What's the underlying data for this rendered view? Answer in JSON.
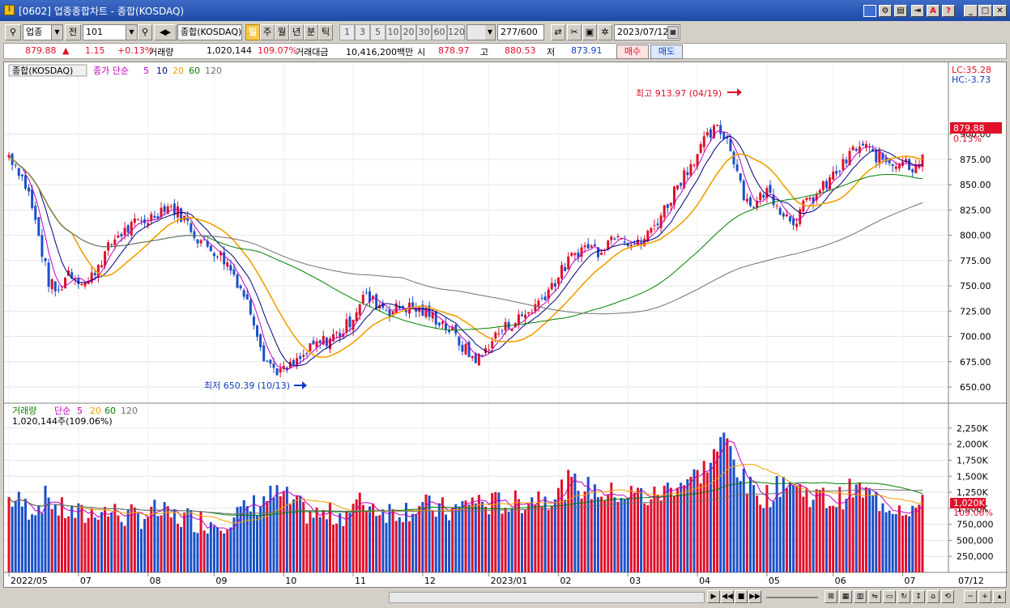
{
  "window": {
    "title": "[0602] 업종종합차트 - 종합(KOSDAQ)",
    "buttons": [
      "minimize",
      "maximize",
      "close"
    ]
  },
  "toolbar": {
    "market": "업종",
    "prev_label": "전",
    "code": "101",
    "name": "종합(KOSDAQ)",
    "periods": [
      "일",
      "주",
      "월",
      "년",
      "분",
      "틱"
    ],
    "active_period": "일",
    "intervals": [
      "1",
      "3",
      "5",
      "10",
      "20",
      "30",
      "60",
      "120"
    ],
    "count": "277",
    "count_total": "/600",
    "date": "2023/07/12"
  },
  "quote": {
    "price": "879.88",
    "direction": "▲",
    "change": "1.15",
    "change_pct": "+0.13%",
    "volume_label": "거래량",
    "volume": "1,020,144",
    "volume_ratio": "109.07%",
    "amount_label": "거래대금",
    "amount": "10,416,200백만",
    "open_label": "시",
    "open": "878.97",
    "high_label": "고",
    "high": "880.53",
    "low_label": "저",
    "low": "873.91",
    "buy_label": "매수",
    "sell_label": "매도"
  },
  "price_panel": {
    "tag": "종합(KOSDAQ)",
    "ma_label": "종가 단순",
    "ma_periods": [
      "5",
      "10",
      "20",
      "60",
      "120"
    ],
    "lc": "LC:35.28",
    "hc": "HC:-3.73",
    "current": "879.88",
    "current_pct": "0.13%",
    "high_annotation": "최고 913.97 (04/19)",
    "low_annotation": "최저 650.39 (10/13)"
  },
  "volume_panel": {
    "label": "거래량",
    "ma_label": "단순",
    "ma_periods": [
      "5",
      "20",
      "60",
      "120"
    ],
    "summary": "1,020,144주(109.06%)",
    "current": "1,020K",
    "current_pct": "109.06%"
  },
  "x_axis": [
    "2022/05",
    "07",
    "08",
    "09",
    "10",
    "11",
    "12",
    "2023/01",
    "02",
    "03",
    "04",
    "05",
    "06",
    "07"
  ],
  "x_axis_right": "07/12",
  "colors": {
    "up": "#e0102a",
    "down": "#1a50c8",
    "ma5": "#c000c0",
    "ma10": "#000080",
    "ma20": "#f0a000",
    "ma60": "#008000",
    "ma120": "#707070"
  },
  "chart_data": {
    "type": "candlestick",
    "title": "종합(KOSDAQ)",
    "y_ticks": [
      900,
      875,
      850,
      825,
      800,
      775,
      750,
      725,
      700,
      675,
      650
    ],
    "ylim": [
      638,
      955
    ],
    "volume_ticks_k": [
      2250,
      2000,
      1750,
      1500,
      1250,
      1000,
      750,
      500,
      250
    ],
    "volume_ylim_k": [
      0,
      2400
    ],
    "closes_by_month": [
      {
        "month": "2022/05",
        "close": [
          880,
          865,
          842,
          800,
          755,
          742,
          765
        ]
      },
      {
        "month": "07",
        "close": [
          758,
          752,
          770,
          785,
          800,
          805,
          812
        ]
      },
      {
        "month": "08",
        "close": [
          815,
          822,
          830,
          825,
          815,
          800,
          790
        ]
      },
      {
        "month": "09",
        "close": [
          785,
          775,
          760,
          740,
          715,
          680,
          668
        ]
      },
      {
        "month": "10",
        "close": [
          665,
          672,
          680,
          690,
          695,
          700,
          705
        ]
      },
      {
        "month": "11",
        "close": [
          720,
          740,
          735,
          730,
          725,
          730,
          728
        ]
      },
      {
        "month": "12",
        "close": [
          725,
          720,
          715,
          705,
          692,
          680,
          678
        ]
      },
      {
        "month": "2023/01",
        "close": [
          695,
          705,
          712,
          718,
          725,
          735,
          748
        ]
      },
      {
        "month": "02",
        "close": [
          760,
          775,
          785,
          790,
          785,
          795,
          805
        ]
      },
      {
        "month": "03",
        "close": [
          795,
          790,
          800,
          815,
          830,
          850,
          865
        ]
      },
      {
        "month": "04",
        "close": [
          880,
          895,
          905,
          898,
          870,
          835,
          830
        ]
      },
      {
        "month": "05",
        "close": [
          845,
          835,
          820,
          815,
          830,
          838,
          848
        ]
      },
      {
        "month": "06",
        "close": [
          860,
          870,
          885,
          888,
          880,
          875,
          872
        ]
      },
      {
        "month": "07",
        "close": [
          875,
          868,
          880
        ]
      }
    ],
    "volume_by_month_k": [
      {
        "month": "2022/05",
        "volume": [
          1150,
          1100,
          1000,
          1050,
          1200,
          980,
          950
        ]
      },
      {
        "month": "07",
        "volume": [
          900,
          880,
          1000,
          950,
          920,
          870,
          860
        ]
      },
      {
        "month": "08",
        "volume": [
          900,
          950,
          880,
          860,
          850,
          820,
          800
        ]
      },
      {
        "month": "09",
        "volume": [
          780,
          820,
          900,
          950,
          1050,
          1150,
          1200
        ]
      },
      {
        "month": "10",
        "volume": [
          1180,
          1050,
          960,
          900,
          880,
          890,
          920
        ]
      },
      {
        "month": "11",
        "volume": [
          1000,
          1100,
          1050,
          980,
          960,
          980,
          1000
        ]
      },
      {
        "month": "12",
        "volume": [
          1050,
          1000,
          980,
          950,
          1000,
          1150,
          1100
        ]
      },
      {
        "month": "2023/01",
        "volume": [
          1050,
          1100,
          1050,
          1100,
          1150,
          1200,
          1180
        ]
      },
      {
        "month": "02",
        "volume": [
          1250,
          1400,
          1350,
          1300,
          1280,
          1200,
          1250
        ]
      },
      {
        "month": "03",
        "volume": [
          1200,
          1250,
          1150,
          1200,
          1300,
          1400,
          1450
        ]
      },
      {
        "month": "04",
        "volume": [
          1500,
          1650,
          1900,
          2100,
          1700,
          1350,
          1250
        ]
      },
      {
        "month": "05",
        "volume": [
          1200,
          1250,
          1500,
          1350,
          1250,
          1200,
          1150
        ]
      },
      {
        "month": "06",
        "volume": [
          1100,
          1200,
          1300,
          1250,
          1150,
          1100,
          1050
        ]
      },
      {
        "month": "07",
        "volume": [
          1050,
          1000,
          1020
        ]
      }
    ]
  }
}
